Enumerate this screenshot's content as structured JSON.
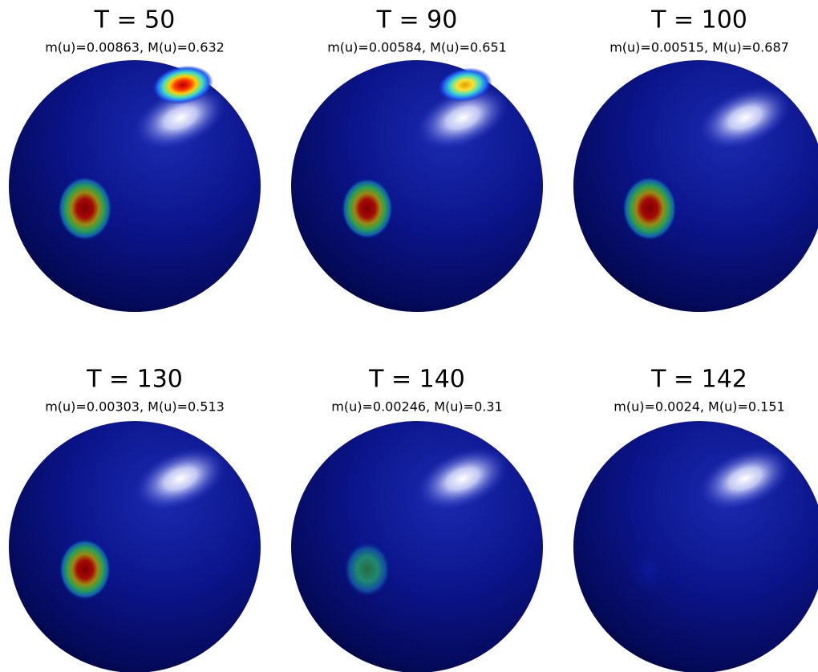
{
  "panels": [
    {
      "title": "T = 50",
      "subtitle": "m(u)=0.00863, M(u)=0.632"
    },
    {
      "title": "T = 90",
      "subtitle": "m(u)=0.00584, M(u)=0.651"
    },
    {
      "title": "T = 100",
      "subtitle": "m(u)=0.00515, M(u)=0.687"
    },
    {
      "title": "T = 130",
      "subtitle": "m(u)=0.00303, M(u)=0.513"
    },
    {
      "title": "T = 140",
      "subtitle": "m(u)=0.00246, M(u)=0.31"
    },
    {
      "title": "T = 142",
      "subtitle": "m(u)=0.0024, M(u)=0.151"
    }
  ]
}
